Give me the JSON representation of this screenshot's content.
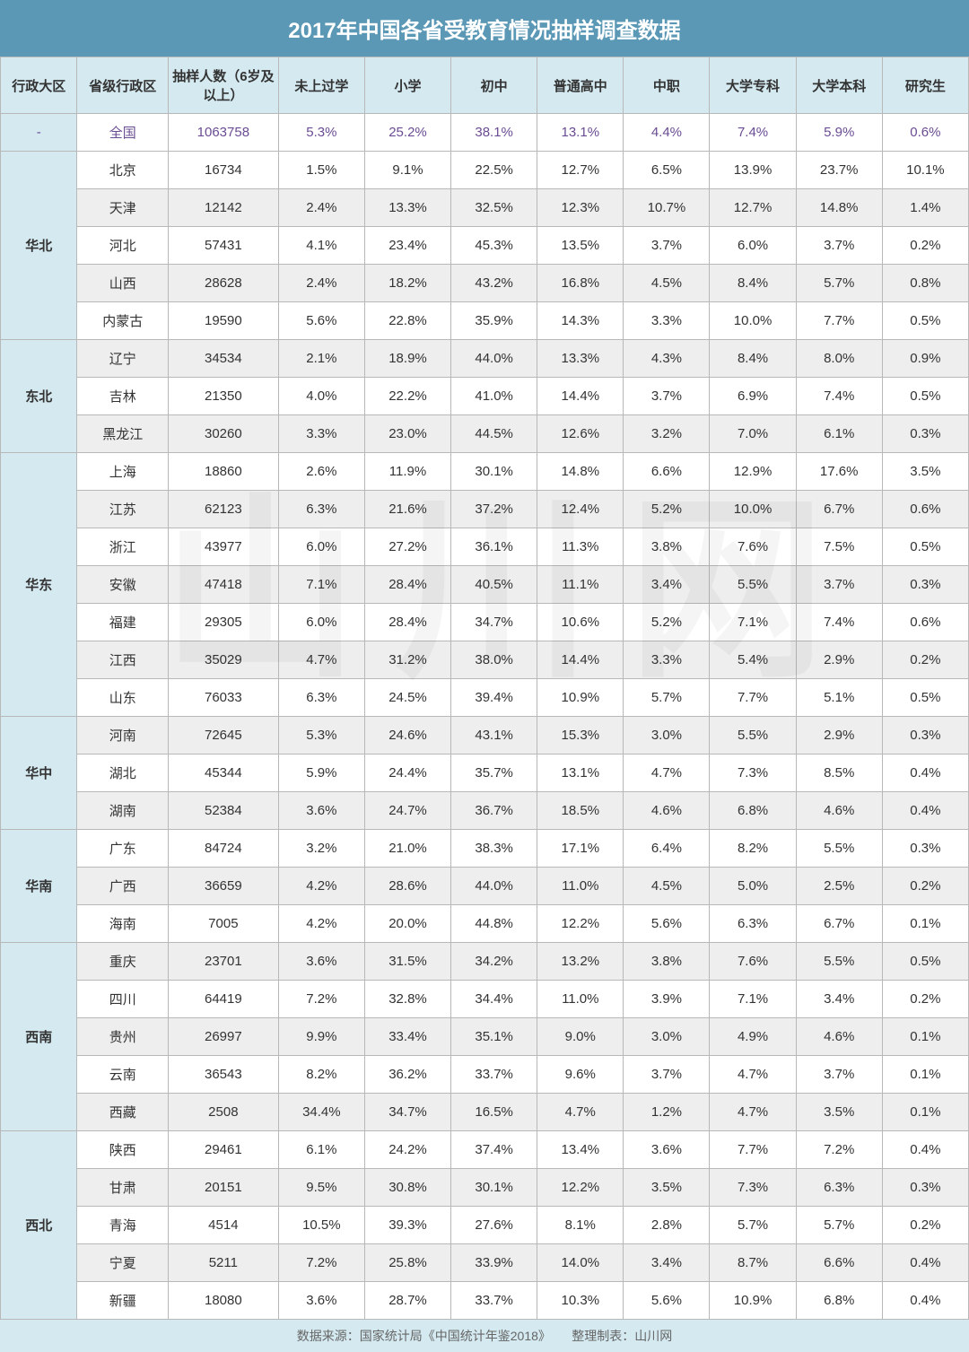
{
  "title": "2017年中国各省受教育情况抽样调查数据",
  "footer_source": "数据来源：国家统计局《中国统计年鉴2018》",
  "footer_credit": "整理制表：山川网",
  "watermark": "山川网",
  "colors": {
    "title_bg": "#5a98b5",
    "title_text": "#ffffff",
    "header_bg": "#d4e9f0",
    "header_text": "#333333",
    "border": "#b8b8b8",
    "row_alt_bg": "#eeeeee",
    "row_bg": "#ffffff",
    "national_text": "#6a4c93",
    "footer_bg": "#d4e9f0",
    "footer_text": "#666666",
    "body_text": "#333333"
  },
  "columns": [
    "行政大区",
    "省级行政区",
    "抽样人数（6岁及以上）",
    "未上过学",
    "小学",
    "初中",
    "普通高中",
    "中职",
    "大学专科",
    "大学本科",
    "研究生"
  ],
  "national": {
    "region": "-",
    "province": "全国",
    "sample": "1063758",
    "pcts": [
      "5.3%",
      "25.2%",
      "38.1%",
      "13.1%",
      "4.4%",
      "7.4%",
      "5.9%",
      "0.6%"
    ]
  },
  "regions": [
    {
      "name": "华北",
      "rows": [
        {
          "province": "北京",
          "sample": "16734",
          "pcts": [
            "1.5%",
            "9.1%",
            "22.5%",
            "12.7%",
            "6.5%",
            "13.9%",
            "23.7%",
            "10.1%"
          ]
        },
        {
          "province": "天津",
          "sample": "12142",
          "pcts": [
            "2.4%",
            "13.3%",
            "32.5%",
            "12.3%",
            "10.7%",
            "12.7%",
            "14.8%",
            "1.4%"
          ]
        },
        {
          "province": "河北",
          "sample": "57431",
          "pcts": [
            "4.1%",
            "23.4%",
            "45.3%",
            "13.5%",
            "3.7%",
            "6.0%",
            "3.7%",
            "0.2%"
          ]
        },
        {
          "province": "山西",
          "sample": "28628",
          "pcts": [
            "2.4%",
            "18.2%",
            "43.2%",
            "16.8%",
            "4.5%",
            "8.4%",
            "5.7%",
            "0.8%"
          ]
        },
        {
          "province": "内蒙古",
          "sample": "19590",
          "pcts": [
            "5.6%",
            "22.8%",
            "35.9%",
            "14.3%",
            "3.3%",
            "10.0%",
            "7.7%",
            "0.5%"
          ]
        }
      ]
    },
    {
      "name": "东北",
      "rows": [
        {
          "province": "辽宁",
          "sample": "34534",
          "pcts": [
            "2.1%",
            "18.9%",
            "44.0%",
            "13.3%",
            "4.3%",
            "8.4%",
            "8.0%",
            "0.9%"
          ]
        },
        {
          "province": "吉林",
          "sample": "21350",
          "pcts": [
            "4.0%",
            "22.2%",
            "41.0%",
            "14.4%",
            "3.7%",
            "6.9%",
            "7.4%",
            "0.5%"
          ]
        },
        {
          "province": "黑龙江",
          "sample": "30260",
          "pcts": [
            "3.3%",
            "23.0%",
            "44.5%",
            "12.6%",
            "3.2%",
            "7.0%",
            "6.1%",
            "0.3%"
          ]
        }
      ]
    },
    {
      "name": "华东",
      "rows": [
        {
          "province": "上海",
          "sample": "18860",
          "pcts": [
            "2.6%",
            "11.9%",
            "30.1%",
            "14.8%",
            "6.6%",
            "12.9%",
            "17.6%",
            "3.5%"
          ]
        },
        {
          "province": "江苏",
          "sample": "62123",
          "pcts": [
            "6.3%",
            "21.6%",
            "37.2%",
            "12.4%",
            "5.2%",
            "10.0%",
            "6.7%",
            "0.6%"
          ]
        },
        {
          "province": "浙江",
          "sample": "43977",
          "pcts": [
            "6.0%",
            "27.2%",
            "36.1%",
            "11.3%",
            "3.8%",
            "7.6%",
            "7.5%",
            "0.5%"
          ]
        },
        {
          "province": "安徽",
          "sample": "47418",
          "pcts": [
            "7.1%",
            "28.4%",
            "40.5%",
            "11.1%",
            "3.4%",
            "5.5%",
            "3.7%",
            "0.3%"
          ]
        },
        {
          "province": "福建",
          "sample": "29305",
          "pcts": [
            "6.0%",
            "28.4%",
            "34.7%",
            "10.6%",
            "5.2%",
            "7.1%",
            "7.4%",
            "0.6%"
          ]
        },
        {
          "province": "江西",
          "sample": "35029",
          "pcts": [
            "4.7%",
            "31.2%",
            "38.0%",
            "14.4%",
            "3.3%",
            "5.4%",
            "2.9%",
            "0.2%"
          ]
        },
        {
          "province": "山东",
          "sample": "76033",
          "pcts": [
            "6.3%",
            "24.5%",
            "39.4%",
            "10.9%",
            "5.7%",
            "7.7%",
            "5.1%",
            "0.5%"
          ]
        }
      ]
    },
    {
      "name": "华中",
      "rows": [
        {
          "province": "河南",
          "sample": "72645",
          "pcts": [
            "5.3%",
            "24.6%",
            "43.1%",
            "15.3%",
            "3.0%",
            "5.5%",
            "2.9%",
            "0.3%"
          ]
        },
        {
          "province": "湖北",
          "sample": "45344",
          "pcts": [
            "5.9%",
            "24.4%",
            "35.7%",
            "13.1%",
            "4.7%",
            "7.3%",
            "8.5%",
            "0.4%"
          ]
        },
        {
          "province": "湖南",
          "sample": "52384",
          "pcts": [
            "3.6%",
            "24.7%",
            "36.7%",
            "18.5%",
            "4.6%",
            "6.8%",
            "4.6%",
            "0.4%"
          ]
        }
      ]
    },
    {
      "name": "华南",
      "rows": [
        {
          "province": "广东",
          "sample": "84724",
          "pcts": [
            "3.2%",
            "21.0%",
            "38.3%",
            "17.1%",
            "6.4%",
            "8.2%",
            "5.5%",
            "0.3%"
          ]
        },
        {
          "province": "广西",
          "sample": "36659",
          "pcts": [
            "4.2%",
            "28.6%",
            "44.0%",
            "11.0%",
            "4.5%",
            "5.0%",
            "2.5%",
            "0.2%"
          ]
        },
        {
          "province": "海南",
          "sample": "7005",
          "pcts": [
            "4.2%",
            "20.0%",
            "44.8%",
            "12.2%",
            "5.6%",
            "6.3%",
            "6.7%",
            "0.1%"
          ]
        }
      ]
    },
    {
      "name": "西南",
      "rows": [
        {
          "province": "重庆",
          "sample": "23701",
          "pcts": [
            "3.6%",
            "31.5%",
            "34.2%",
            "13.2%",
            "3.8%",
            "7.6%",
            "5.5%",
            "0.5%"
          ]
        },
        {
          "province": "四川",
          "sample": "64419",
          "pcts": [
            "7.2%",
            "32.8%",
            "34.4%",
            "11.0%",
            "3.9%",
            "7.1%",
            "3.4%",
            "0.2%"
          ]
        },
        {
          "province": "贵州",
          "sample": "26997",
          "pcts": [
            "9.9%",
            "33.4%",
            "35.1%",
            "9.0%",
            "3.0%",
            "4.9%",
            "4.6%",
            "0.1%"
          ]
        },
        {
          "province": "云南",
          "sample": "36543",
          "pcts": [
            "8.2%",
            "36.2%",
            "33.7%",
            "9.6%",
            "3.7%",
            "4.7%",
            "3.7%",
            "0.1%"
          ]
        },
        {
          "province": "西藏",
          "sample": "2508",
          "pcts": [
            "34.4%",
            "34.7%",
            "16.5%",
            "4.7%",
            "1.2%",
            "4.7%",
            "3.5%",
            "0.1%"
          ]
        }
      ]
    },
    {
      "name": "西北",
      "rows": [
        {
          "province": "陕西",
          "sample": "29461",
          "pcts": [
            "6.1%",
            "24.2%",
            "37.4%",
            "13.4%",
            "3.6%",
            "7.7%",
            "7.2%",
            "0.4%"
          ]
        },
        {
          "province": "甘肃",
          "sample": "20151",
          "pcts": [
            "9.5%",
            "30.8%",
            "30.1%",
            "12.2%",
            "3.5%",
            "7.3%",
            "6.3%",
            "0.3%"
          ]
        },
        {
          "province": "青海",
          "sample": "4514",
          "pcts": [
            "10.5%",
            "39.3%",
            "27.6%",
            "8.1%",
            "2.8%",
            "5.7%",
            "5.7%",
            "0.2%"
          ]
        },
        {
          "province": "宁夏",
          "sample": "5211",
          "pcts": [
            "7.2%",
            "25.8%",
            "33.9%",
            "14.0%",
            "3.4%",
            "8.7%",
            "6.6%",
            "0.4%"
          ]
        },
        {
          "province": "新疆",
          "sample": "18080",
          "pcts": [
            "3.6%",
            "28.7%",
            "33.7%",
            "10.3%",
            "5.6%",
            "10.9%",
            "6.8%",
            "0.4%"
          ]
        }
      ]
    }
  ]
}
